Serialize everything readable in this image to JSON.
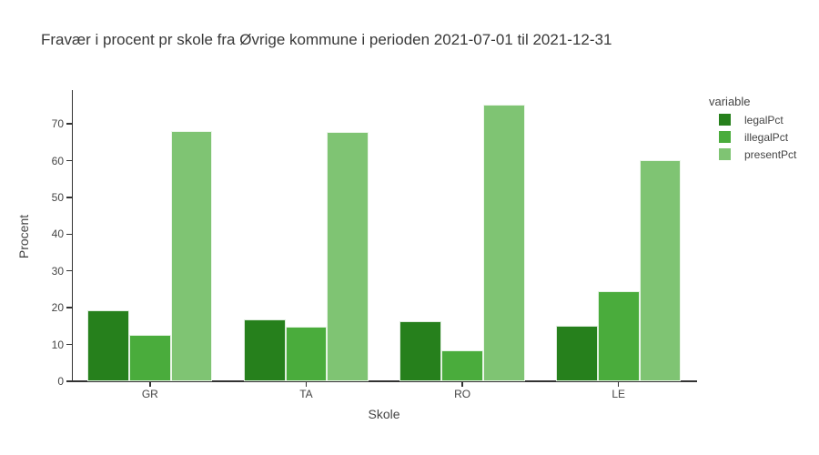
{
  "chart_data": {
    "type": "bar",
    "title": "Fravær i procent pr skole fra Øvrige kommune i perioden 2021-07-01 til 2021-12-31",
    "xlabel": "Skole",
    "ylabel": "Procent",
    "categories": [
      "GR",
      "TA",
      "RO",
      "LE"
    ],
    "series": [
      {
        "name": "legalPct",
        "color": "#26801c",
        "values": [
          19.2,
          16.8,
          16.3,
          15.0
        ]
      },
      {
        "name": "illegalPct",
        "color": "#4aac3c",
        "values": [
          12.6,
          14.9,
          8.3,
          24.4
        ]
      },
      {
        "name": "presentPct",
        "color": "#7fc473",
        "values": [
          68.0,
          67.7,
          75.2,
          60.2
        ]
      }
    ],
    "ylim": [
      0,
      79.2
    ],
    "yticks": [
      0,
      10,
      20,
      30,
      40,
      50,
      60,
      70
    ],
    "legend": {
      "title": "variable",
      "position": "top-right"
    },
    "grid": false,
    "background": "#ffffff",
    "axis_color": "#323232",
    "text_color": "#444444"
  }
}
